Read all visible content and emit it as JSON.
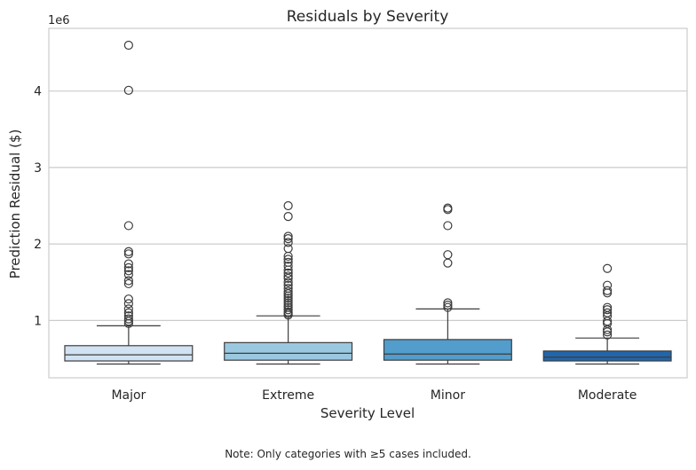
{
  "chart_data": {
    "type": "box",
    "title": "Residuals by Severity",
    "xlabel": "Severity Level",
    "ylabel": "Prediction Residual ($)",
    "y_offset_label": "1e6",
    "ylim": [
      0.25,
      4.82
    ],
    "yticks": [
      1,
      2,
      3,
      4
    ],
    "grid": "horizontal",
    "categories": [
      "Major",
      "Extreme",
      "Minor",
      "Moderate"
    ],
    "colors": [
      "#d1e2f2",
      "#9ac8e0",
      "#529dcc",
      "#2166ac"
    ],
    "boxes": [
      {
        "category": "Major",
        "whisker_low": 0.43,
        "q1": 0.47,
        "median": 0.55,
        "q3": 0.67,
        "whisker_high": 0.93,
        "outliers": [
          4.6,
          4.01,
          2.24,
          1.9,
          1.87,
          1.74,
          1.69,
          1.65,
          1.6,
          1.52,
          1.48,
          1.28,
          1.22,
          1.15,
          1.1,
          1.06,
          1.02,
          0.99,
          0.96
        ]
      },
      {
        "category": "Extreme",
        "whisker_low": 0.43,
        "q1": 0.48,
        "median": 0.57,
        "q3": 0.71,
        "whisker_high": 1.06,
        "outliers": [
          2.5,
          2.36,
          2.1,
          2.07,
          2.02,
          1.94,
          1.84,
          1.8,
          1.76,
          1.71,
          1.66,
          1.62,
          1.58,
          1.55,
          1.5,
          1.46,
          1.42,
          1.38,
          1.35,
          1.32,
          1.29,
          1.26,
          1.23,
          1.2,
          1.17,
          1.14,
          1.11,
          1.09,
          1.07
        ]
      },
      {
        "category": "Minor",
        "whisker_low": 0.43,
        "q1": 0.48,
        "median": 0.56,
        "q3": 0.75,
        "whisker_high": 1.15,
        "outliers": [
          2.47,
          2.45,
          2.24,
          1.86,
          1.75,
          1.23,
          1.2,
          1.17
        ]
      },
      {
        "category": "Moderate",
        "whisker_low": 0.43,
        "q1": 0.47,
        "median": 0.52,
        "q3": 0.6,
        "whisker_high": 0.77,
        "outliers": [
          1.68,
          1.46,
          1.39,
          1.36,
          1.17,
          1.14,
          1.1,
          1.06,
          0.99,
          0.96,
          0.88,
          0.85,
          0.81
        ]
      }
    ],
    "note": "Note: Only categories with ≥5 cases included."
  }
}
